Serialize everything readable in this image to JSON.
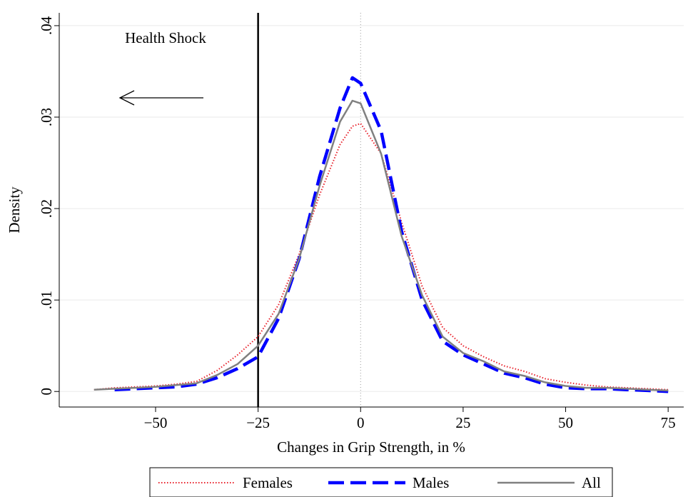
{
  "chart_data": {
    "type": "line",
    "annotation": "Health Shock",
    "xlabel": "Changes in Grip Strength, in %",
    "ylabel": "Density",
    "x": [
      -65,
      -60,
      -55,
      -50,
      -45,
      -40,
      -35,
      -30,
      -25,
      -20,
      -15,
      -10,
      -5,
      -2,
      0,
      5,
      10,
      15,
      20,
      25,
      30,
      35,
      40,
      45,
      50,
      55,
      60,
      65,
      70,
      75
    ],
    "series": [
      {
        "name": "Females",
        "color": "#e8202a",
        "style": "dotted",
        "values": [
          0.0002,
          0.0004,
          0.0005,
          0.0006,
          0.0008,
          0.0011,
          0.0023,
          0.004,
          0.006,
          0.0095,
          0.015,
          0.0215,
          0.027,
          0.029,
          0.0293,
          0.026,
          0.0185,
          0.0115,
          0.007,
          0.005,
          0.0038,
          0.0028,
          0.0022,
          0.0014,
          0.001,
          0.0007,
          0.0005,
          0.0004,
          0.0003,
          0.0002
        ]
      },
      {
        "name": "Males",
        "color": "#0000ff",
        "style": "dashed",
        "values": [
          null,
          0.0002,
          0.0003,
          0.0004,
          0.0005,
          0.0008,
          0.0015,
          0.0025,
          0.0038,
          0.008,
          0.0145,
          0.0235,
          0.031,
          0.0343,
          0.0337,
          0.0285,
          0.0175,
          0.01,
          0.0055,
          0.004,
          0.003,
          0.002,
          0.0015,
          0.0008,
          0.0004,
          0.0003,
          0.0003,
          0.0002,
          0.0001,
          0
        ]
      },
      {
        "name": "All",
        "color": "#808080",
        "style": "solid",
        "values": [
          0.0002,
          0.0003,
          0.0004,
          0.0005,
          0.0007,
          0.0009,
          0.0018,
          0.003,
          0.005,
          0.0085,
          0.0145,
          0.0225,
          0.0295,
          0.0318,
          0.0315,
          0.026,
          0.017,
          0.0105,
          0.006,
          0.0042,
          0.0033,
          0.0022,
          0.0017,
          0.001,
          0.0006,
          0.0004,
          0.0004,
          0.0003,
          0.0002,
          0.0001
        ]
      }
    ],
    "reference_lines": [
      {
        "x": -25,
        "color": "#000000",
        "style": "solid"
      },
      {
        "x": 0,
        "color": "#999999",
        "style": "dotted"
      }
    ],
    "xlim": [
      -73.5,
      78.8
    ],
    "ylim": [
      -0.0017,
      0.0414
    ],
    "xticks": [
      {
        "value": -50,
        "label": "−50"
      },
      {
        "value": -25,
        "label": "−25"
      },
      0,
      25,
      50,
      75
    ],
    "yticks": [
      0,
      {
        "value": 0.01,
        "label": ".01"
      },
      {
        "value": 0.02,
        "label": ".02"
      },
      {
        "value": 0.03,
        "label": ".03"
      },
      {
        "value": 0.04,
        "label": ".04"
      }
    ],
    "grid": true,
    "legend": "bottom"
  }
}
